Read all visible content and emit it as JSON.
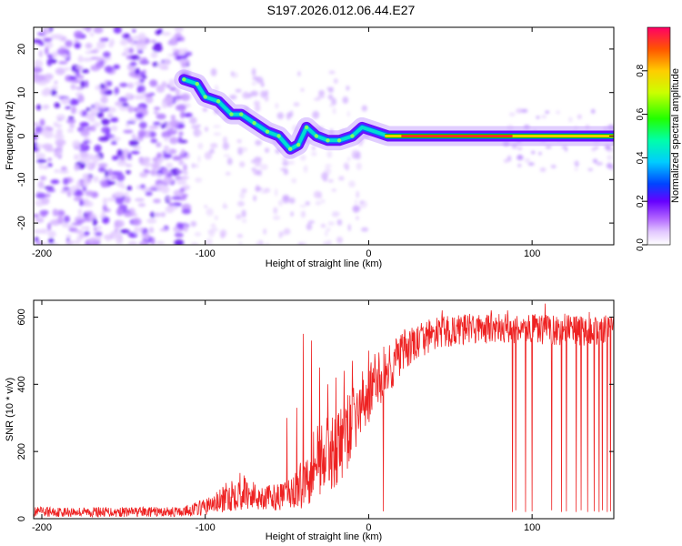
{
  "title": "S197.2026.012.06.44.E27",
  "colors": {
    "line": "#ee2222",
    "ridge": "#ff2020",
    "frame": "#000000"
  },
  "chart_data": [
    {
      "type": "heatmap",
      "xlabel": "Height of straight line (km)",
      "ylabel": "Frequency (Hz)",
      "xlim": [
        -205,
        150
      ],
      "ylim": [
        -25,
        25
      ],
      "xticks": [
        -200,
        -100,
        0,
        100
      ],
      "yticks": [
        -20,
        -10,
        0,
        10,
        20
      ],
      "ridge": [
        {
          "x": -113,
          "y": 13
        },
        {
          "x": -105,
          "y": 12
        },
        {
          "x": -100,
          "y": 9
        },
        {
          "x": -92,
          "y": 8
        },
        {
          "x": -84,
          "y": 5
        },
        {
          "x": -78,
          "y": 5
        },
        {
          "x": -70,
          "y": 3
        },
        {
          "x": -62,
          "y": 1
        },
        {
          "x": -55,
          "y": 0
        },
        {
          "x": -48,
          "y": -3
        },
        {
          "x": -43,
          "y": -2
        },
        {
          "x": -38,
          "y": 2
        },
        {
          "x": -32,
          "y": 0
        },
        {
          "x": -25,
          "y": -1
        },
        {
          "x": -18,
          "y": -1
        },
        {
          "x": -10,
          "y": 0
        },
        {
          "x": -4,
          "y": 2
        },
        {
          "x": 4,
          "y": 1
        },
        {
          "x": 12,
          "y": 0
        },
        {
          "x": 150,
          "y": 0
        }
      ],
      "colorbar": {
        "label": "Normalized spectral amplitude",
        "range": [
          0,
          1
        ],
        "ticks": [
          0.0,
          0.2,
          0.4,
          0.6,
          0.8
        ]
      }
    },
    {
      "type": "line",
      "xlabel": "Height of straight line (km)",
      "ylabel": "SNR (10 * v/v)",
      "xlim": [
        -205,
        150
      ],
      "ylim": [
        0,
        650
      ],
      "xticks": [
        -200,
        -100,
        0,
        100
      ],
      "yticks": [
        0,
        200,
        400,
        600
      ],
      "series": [
        {
          "name": "SNR",
          "envelope": {
            "x": [
              -205,
              -150,
              -115,
              -100,
              -90,
              -80,
              -70,
              -60,
              -50,
              -40,
              -35,
              -30,
              -25,
              -20,
              -15,
              -10,
              -5,
              0,
              5,
              10,
              20,
              30,
              40,
              60,
              100,
              150
            ],
            "lower": [
              5,
              5,
              5,
              10,
              15,
              25,
              25,
              25,
              25,
              30,
              50,
              70,
              80,
              90,
              120,
              180,
              230,
              280,
              320,
              350,
              420,
              470,
              500,
              520,
              520,
              510
            ],
            "upper": [
              35,
              35,
              35,
              60,
              90,
              150,
              110,
              100,
              110,
              180,
              280,
              300,
              300,
              320,
              350,
              390,
              430,
              470,
              500,
              520,
              560,
              580,
              600,
              610,
              610,
              600
            ]
          },
          "spikes": [
            {
              "x": -50,
              "y": 300
            },
            {
              "x": -44,
              "y": 330
            },
            {
              "x": -40,
              "y": 550
            },
            {
              "x": -35,
              "y": 530
            },
            {
              "x": -30,
              "y": 450
            },
            {
              "x": -25,
              "y": 400
            },
            {
              "x": -20,
              "y": 420
            },
            {
              "x": -15,
              "y": 440
            },
            {
              "x": -10,
              "y": 470
            },
            {
              "x": 0,
              "y": 500
            },
            {
              "x": 8,
              "y": 430
            },
            {
              "x": 45,
              "y": 620
            },
            {
              "x": 75,
              "y": 620
            },
            {
              "x": 85,
              "y": 620
            },
            {
              "x": 108,
              "y": 640
            },
            {
              "x": 120,
              "y": 610
            },
            {
              "x": 135,
              "y": 615
            },
            {
              "x": 145,
              "y": 605
            }
          ],
          "dropouts": [
            {
              "x": 9,
              "y": 22
            },
            {
              "x": 88,
              "y": 20
            },
            {
              "x": 90,
              "y": 25
            },
            {
              "x": 96,
              "y": 20
            },
            {
              "x": 100,
              "y": 22
            },
            {
              "x": 112,
              "y": 25
            },
            {
              "x": 118,
              "y": 20
            },
            {
              "x": 121,
              "y": 22
            },
            {
              "x": 127,
              "y": 20
            },
            {
              "x": 130,
              "y": 25
            },
            {
              "x": 134,
              "y": 20
            },
            {
              "x": 138,
              "y": 22
            },
            {
              "x": 141,
              "y": 20
            },
            {
              "x": 143,
              "y": 25
            },
            {
              "x": 146,
              "y": 20
            },
            {
              "x": 148,
              "y": 22
            }
          ]
        }
      ]
    }
  ]
}
